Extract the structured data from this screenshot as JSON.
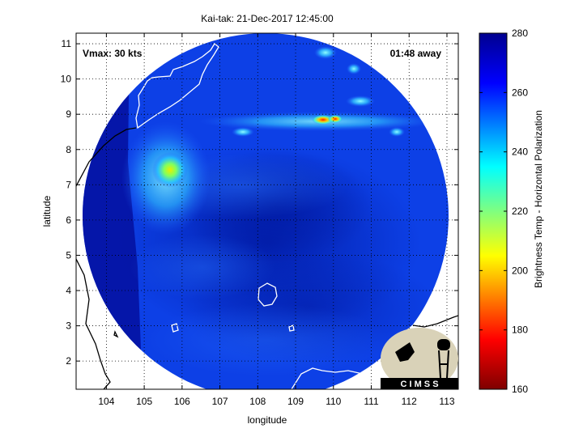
{
  "chart_data": {
    "type": "heatmap",
    "title": "Kai-tak: 21-Dec-2017 12:45:00",
    "xlabel": "longitude",
    "ylabel": "latitude",
    "xlim": [
      103.2,
      113.3
    ],
    "ylim": [
      1.2,
      11.3
    ],
    "x_ticks": [
      104,
      105,
      106,
      107,
      108,
      109,
      110,
      111,
      112,
      113
    ],
    "y_ticks": [
      2,
      3,
      4,
      5,
      6,
      7,
      8,
      9,
      10,
      11
    ],
    "grid": true,
    "annotations": {
      "vmax": "Vmax: 30 kts",
      "time_away": "01:48 away"
    },
    "colorbar": {
      "label": "Brightness Temp - Horizontal Polarization",
      "min": 160,
      "max": 280,
      "ticks": [
        160,
        180,
        200,
        220,
        240,
        260,
        280
      ],
      "colormap": [
        "#7f0000",
        "#ff0000",
        "#ffff00",
        "#00ffff",
        "#0000ff",
        "#00008f"
      ]
    },
    "swath": {
      "center_lon": 108.2,
      "center_lat": 6.3,
      "radius_deg": 4.85
    },
    "features": [
      {
        "lon": 105.7,
        "lat": 7.3,
        "value": 205
      },
      {
        "lon": 109.7,
        "lat": 8.75,
        "value": 180
      },
      {
        "lon": 110.0,
        "lat": 8.8,
        "value": 195
      },
      {
        "lon": 110.5,
        "lat": 10.2,
        "value": 238
      },
      {
        "lon": 109.8,
        "lat": 10.7,
        "value": 236
      },
      {
        "lon": 110.8,
        "lat": 9.3,
        "value": 240
      },
      {
        "lon": 108.8,
        "lat": 8.6,
        "value": 245
      },
      {
        "lon": 107.8,
        "lat": 8.3,
        "value": 247
      }
    ]
  },
  "logo": {
    "text": "C I M S S"
  }
}
